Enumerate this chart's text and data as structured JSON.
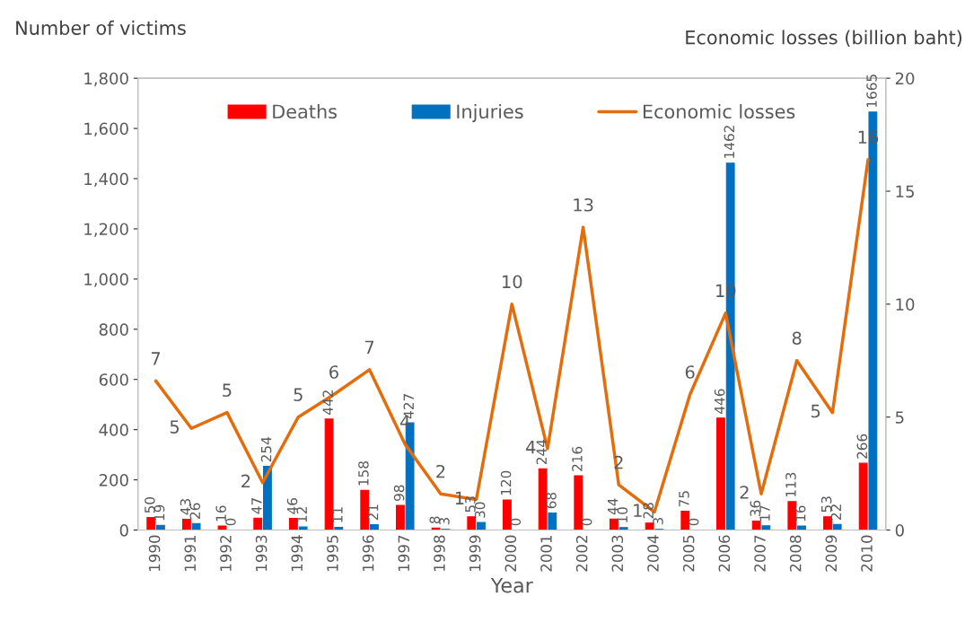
{
  "chart_data": {
    "type": "bar",
    "xlabel": "Year",
    "ylabel": "Number of victims",
    "y2label": "Economic losses (billion baht)",
    "categories": [
      "1990",
      "1991",
      "1992",
      "1993",
      "1994",
      "1995",
      "1996",
      "1997",
      "1998",
      "1999",
      "2000",
      "2001",
      "2002",
      "2003",
      "2004",
      "2005",
      "2006",
      "2007",
      "2008",
      "2009",
      "2010"
    ],
    "series": [
      {
        "name": "Deaths",
        "color": "#ff0000",
        "data_labels": true,
        "values": [
          50,
          43,
          16,
          47,
          46,
          442,
          158,
          98,
          8,
          53,
          120,
          244,
          216,
          44,
          28,
          75,
          446,
          36,
          113,
          53,
          266
        ]
      },
      {
        "name": "Injuries",
        "color": "#0070c0",
        "data_labels": true,
        "values": [
          19,
          26,
          0,
          254,
          12,
          11,
          21,
          427,
          3,
          30,
          0,
          68,
          0,
          10,
          3,
          0,
          1462,
          17,
          16,
          22,
          1665
        ]
      },
      {
        "name": "Economic losses",
        "type": "line",
        "axis": "y2",
        "color": "#e46c0a",
        "values": [
          6.6,
          4.5,
          5.2,
          2.1,
          5.0,
          6.0,
          7.1,
          3.8,
          1.6,
          1.35,
          10.0,
          3.6,
          13.4,
          2.0,
          0.8,
          6.0,
          9.6,
          1.6,
          7.5,
          5.2,
          16.4
        ],
        "value_labels": [
          "7",
          "5",
          "5",
          "2",
          "5",
          "6",
          "7",
          "4",
          "2",
          "1",
          "10",
          "4",
          "13",
          "2",
          "1",
          "6",
          "10",
          "2",
          "8",
          "5",
          "16"
        ]
      }
    ],
    "ylim": [
      0,
      1800
    ],
    "yticks": [
      0,
      200,
      400,
      600,
      800,
      {
        "value": 1000,
        "label": "1,000"
      },
      {
        "value": 1200,
        "label": "1,200"
      },
      {
        "value": 1400,
        "label": "1,400"
      },
      {
        "value": 1600,
        "label": "1,600"
      },
      {
        "value": 1800,
        "label": "1,800"
      }
    ],
    "y2lim": [
      0,
      20
    ],
    "y2ticks": [
      0,
      5,
      10,
      15,
      20
    ],
    "grid": false,
    "legend": "top",
    "marker": "none",
    "line_style": "solid"
  }
}
